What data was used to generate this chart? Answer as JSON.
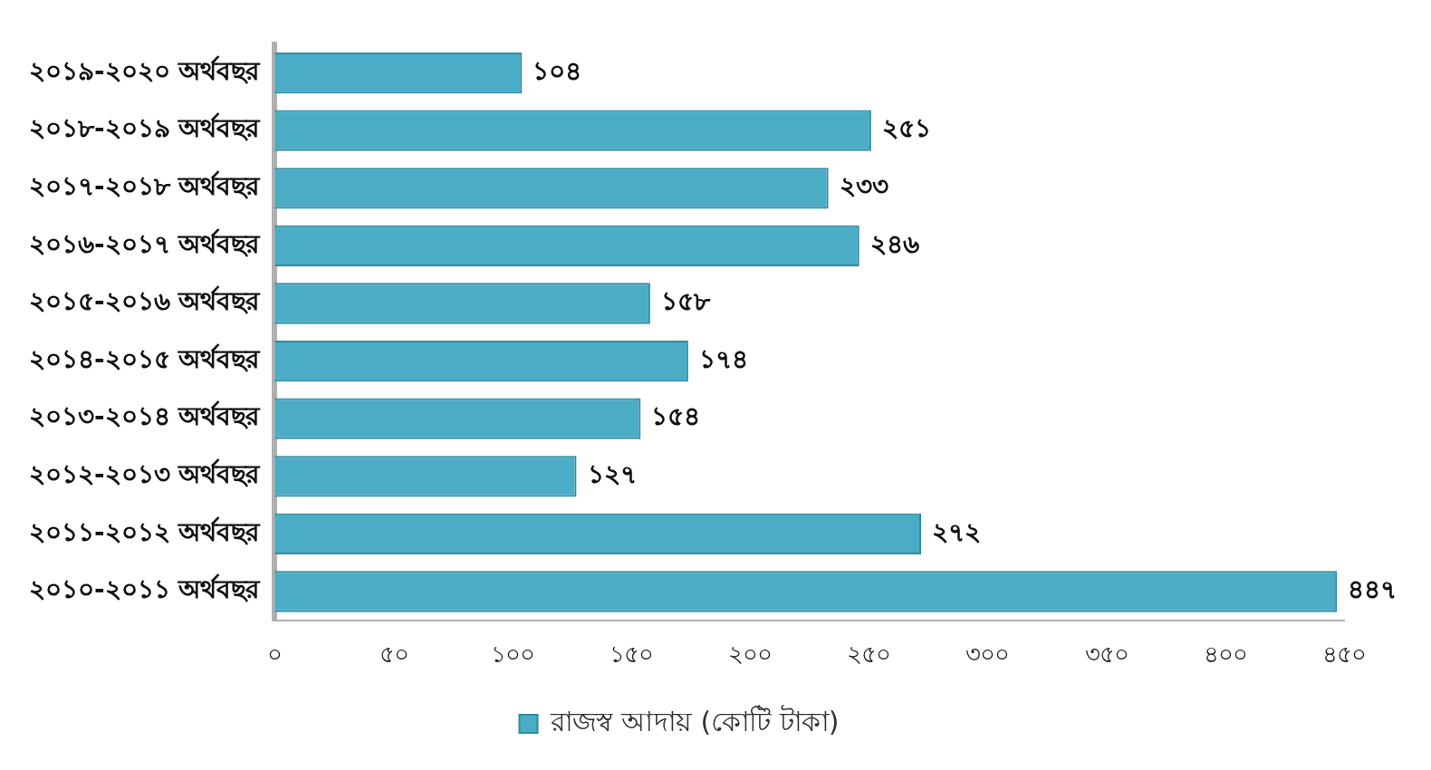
{
  "chart_data": {
    "type": "bar",
    "orientation": "horizontal",
    "categories": [
      "২০১৯-২০২০ অর্থবছর",
      "২০১৮-২০১৯ অর্থবছর",
      "২০১৭-২০১৮ অর্থবছর",
      "২০১৬-২০১৭ অর্থবছর",
      "২০১৫-২০১৬ অর্থবছর",
      "২০১৪-২০১৫ অর্থবছর",
      "২০১৩-২০১৪ অর্থবছর",
      "২০১২-২০১৩ অর্থবছর",
      "২০১১-২০১২ অর্থবছর",
      "২০১০-২০১১ অর্থবছর"
    ],
    "series": [
      {
        "name": "রাজস্ব আদায় (কোটি টাকা)",
        "color": "#4bacc6",
        "values": [
          104,
          251,
          233,
          246,
          158,
          174,
          154,
          127,
          272,
          447
        ],
        "value_labels": [
          "১০৪",
          "২৫১",
          "২৩৩",
          "২৪৬",
          "১৫৮",
          "১৭৪",
          "১৫৪",
          "১২৭",
          "২৭২",
          "৪৪৭"
        ]
      }
    ],
    "xlim": [
      0,
      450
    ],
    "xticks": [
      {
        "value": 0,
        "label": "০"
      },
      {
        "value": 50,
        "label": "৫০"
      },
      {
        "value": 100,
        "label": "১০০"
      },
      {
        "value": 150,
        "label": "১৫০"
      },
      {
        "value": 200,
        "label": "২০০"
      },
      {
        "value": 250,
        "label": "২৫০"
      },
      {
        "value": 300,
        "label": "৩০০"
      },
      {
        "value": 350,
        "label": "৩৫০"
      },
      {
        "value": 400,
        "label": "৪০০"
      },
      {
        "value": 450,
        "label": "৪৫০"
      }
    ],
    "grid": false,
    "legend": "bottom"
  }
}
